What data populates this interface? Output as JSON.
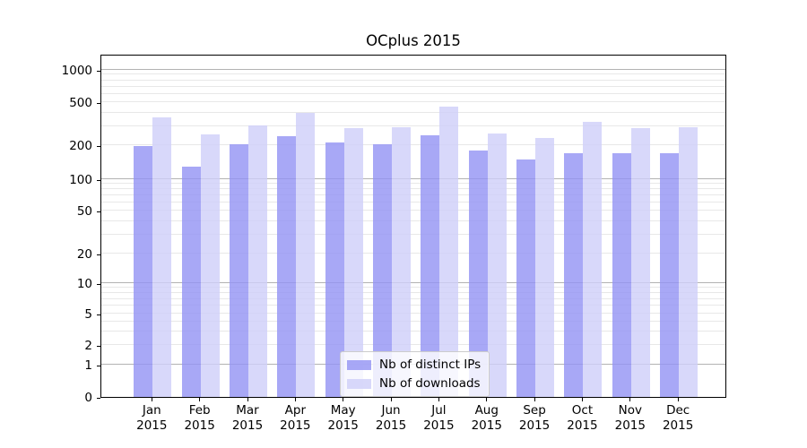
{
  "chart_data": {
    "type": "bar",
    "title": "OCplus 2015",
    "categories": [
      "Jan",
      "Feb",
      "Mar",
      "Apr",
      "May",
      "Jun",
      "Jul",
      "Aug",
      "Sep",
      "Oct",
      "Nov",
      "Dec"
    ],
    "category_year": "2015",
    "series": [
      {
        "name": "Nb of distinct IPs",
        "color": "rgba(146,146,244,0.8)",
        "values": [
          195,
          130,
          205,
          240,
          210,
          205,
          245,
          180,
          150,
          170,
          170,
          170
        ]
      },
      {
        "name": "Nb of downloads",
        "color": "rgba(206,206,249,0.8)",
        "values": [
          360,
          250,
          305,
          395,
          285,
          295,
          455,
          255,
          235,
          330,
          285,
          295
        ]
      }
    ],
    "xlabel": "",
    "ylabel": "",
    "yscale": "symlog",
    "yticks": [
      0,
      1,
      2,
      5,
      10,
      20,
      50,
      100,
      200,
      500,
      1000
    ],
    "ylim": [
      0,
      1400
    ],
    "grid": "major-and-minor",
    "legend_position": "lower center"
  },
  "colors": {
    "background": "#ffffff",
    "spine": "#000000",
    "major_grid": "#b3b3b3",
    "minor_grid": "#e8e8e8",
    "legend_border": "#cccccc",
    "bar_distinct_ips": "rgba(146,146,244,0.8)",
    "bar_downloads": "rgba(206,206,249,0.8)"
  }
}
